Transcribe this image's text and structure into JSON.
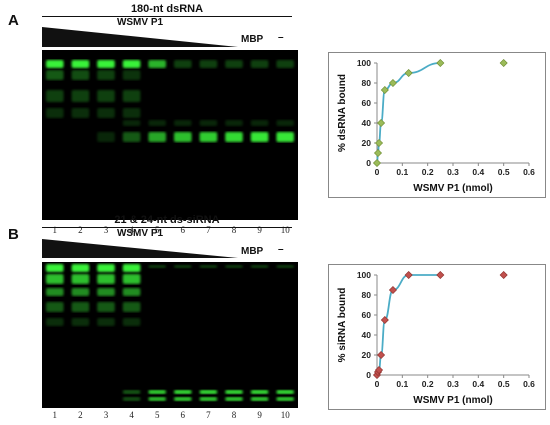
{
  "panels": [
    {
      "letter": "A",
      "title": "180-nt dsRNA",
      "protein_label": "WSMV P1",
      "mbp_label": "MBP",
      "neg_label": "–",
      "lanes": [
        "1",
        "2",
        "3",
        "4",
        "5",
        "6",
        "7",
        "8",
        "9",
        "10"
      ]
    },
    {
      "letter": "B",
      "title": "21 & 24-nt ds-siRNA",
      "protein_label": "WSMV P1",
      "mbp_label": "MBP",
      "neg_label": "–",
      "lanes": [
        "1",
        "2",
        "3",
        "4",
        "5",
        "6",
        "7",
        "8",
        "9",
        "10"
      ]
    }
  ],
  "chart_data": [
    {
      "type": "scatter",
      "xlabel": "WSMV P1 (nmol)",
      "ylabel": "% dsRNA bound",
      "xlim": [
        0,
        0.6
      ],
      "ylim": [
        0,
        100
      ],
      "xticks": [
        "0",
        "0.1",
        "0.2",
        "0.3",
        "0.4",
        "0.5",
        "0.6"
      ],
      "yticks": [
        "0",
        "20",
        "40",
        "60",
        "80",
        "100"
      ],
      "grid": false,
      "marker_color": "#9bbb59",
      "marker_edge": "#6b8b2f",
      "curve_color": "#4bacc6",
      "points": [
        {
          "x": 0,
          "y": 0
        },
        {
          "x": 0.004,
          "y": 10
        },
        {
          "x": 0.008,
          "y": 20
        },
        {
          "x": 0.016,
          "y": 40
        },
        {
          "x": 0.031,
          "y": 73
        },
        {
          "x": 0.063,
          "y": 80
        },
        {
          "x": 0.125,
          "y": 90
        },
        {
          "x": 0.25,
          "y": 100
        },
        {
          "x": 0.5,
          "y": 100
        }
      ]
    },
    {
      "type": "scatter",
      "xlabel": "WSMV P1 (nmol)",
      "ylabel": "% siRNA bound",
      "xlim": [
        0,
        0.6
      ],
      "ylim": [
        0,
        100
      ],
      "xticks": [
        "0",
        "0.1",
        "0.2",
        "0.3",
        "0.4",
        "0.5",
        "0.6"
      ],
      "yticks": [
        "0",
        "20",
        "40",
        "60",
        "80",
        "100"
      ],
      "grid": false,
      "marker_color": "#c0504d",
      "marker_edge": "#8c2f2c",
      "curve_color": "#4bacc6",
      "points": [
        {
          "x": 0,
          "y": 0
        },
        {
          "x": 0.004,
          "y": 3
        },
        {
          "x": 0.008,
          "y": 5
        },
        {
          "x": 0.016,
          "y": 20
        },
        {
          "x": 0.031,
          "y": 55
        },
        {
          "x": 0.063,
          "y": 85
        },
        {
          "x": 0.125,
          "y": 100
        },
        {
          "x": 0.25,
          "y": 100
        },
        {
          "x": 0.5,
          "y": 100
        }
      ]
    }
  ]
}
